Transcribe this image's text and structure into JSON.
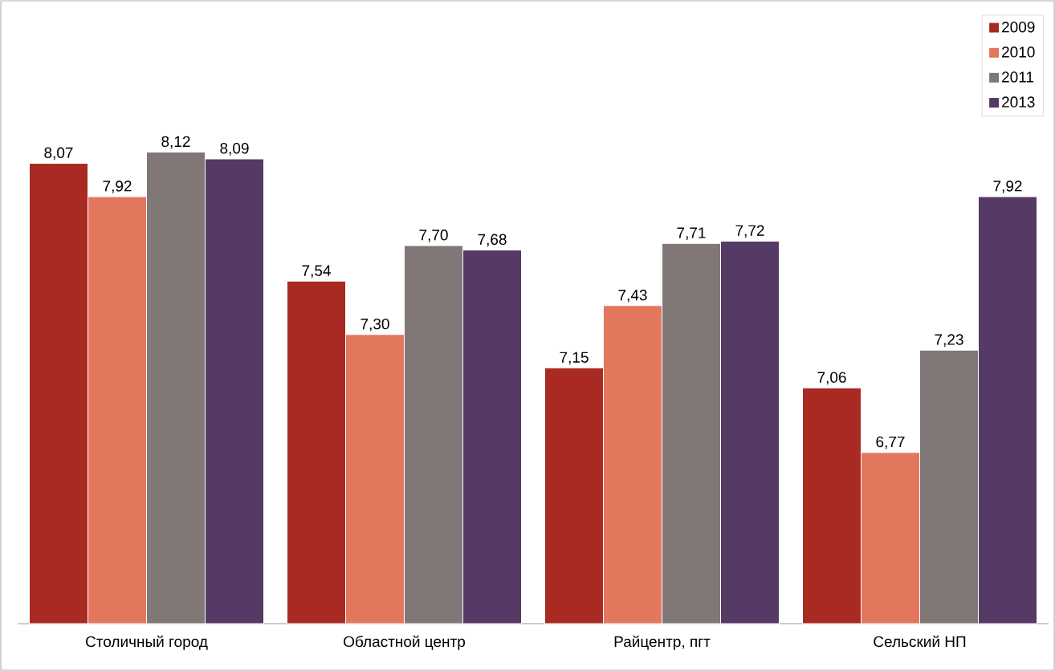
{
  "chart_data": {
    "type": "bar",
    "categories": [
      "Столичный город",
      "Областной центр",
      "Райцентр, пгт",
      "Сельский НП"
    ],
    "series": [
      {
        "name": "2009",
        "color": "#a82a22",
        "values": [
          8.07,
          7.54,
          7.15,
          7.06
        ],
        "value_labels": [
          "8,07",
          "7,54",
          "7,15",
          "7,06"
        ]
      },
      {
        "name": "2010",
        "color": "#e2775e",
        "values": [
          7.92,
          7.3,
          7.43,
          6.77
        ],
        "value_labels": [
          "7,92",
          "7,30",
          "7,43",
          "6,77"
        ]
      },
      {
        "name": "2011",
        "color": "#807776",
        "values": [
          8.12,
          7.7,
          7.71,
          7.23
        ],
        "value_labels": [
          "8,12",
          "7,70",
          "7,71",
          "7,23"
        ]
      },
      {
        "name": "2013",
        "color": "#553a65",
        "values": [
          8.09,
          7.68,
          7.72,
          7.92
        ],
        "value_labels": [
          "8,09",
          "7,68",
          "7,72",
          "7,92"
        ]
      }
    ],
    "ylim": [
      6,
      8.75
    ],
    "legend": "top right"
  }
}
